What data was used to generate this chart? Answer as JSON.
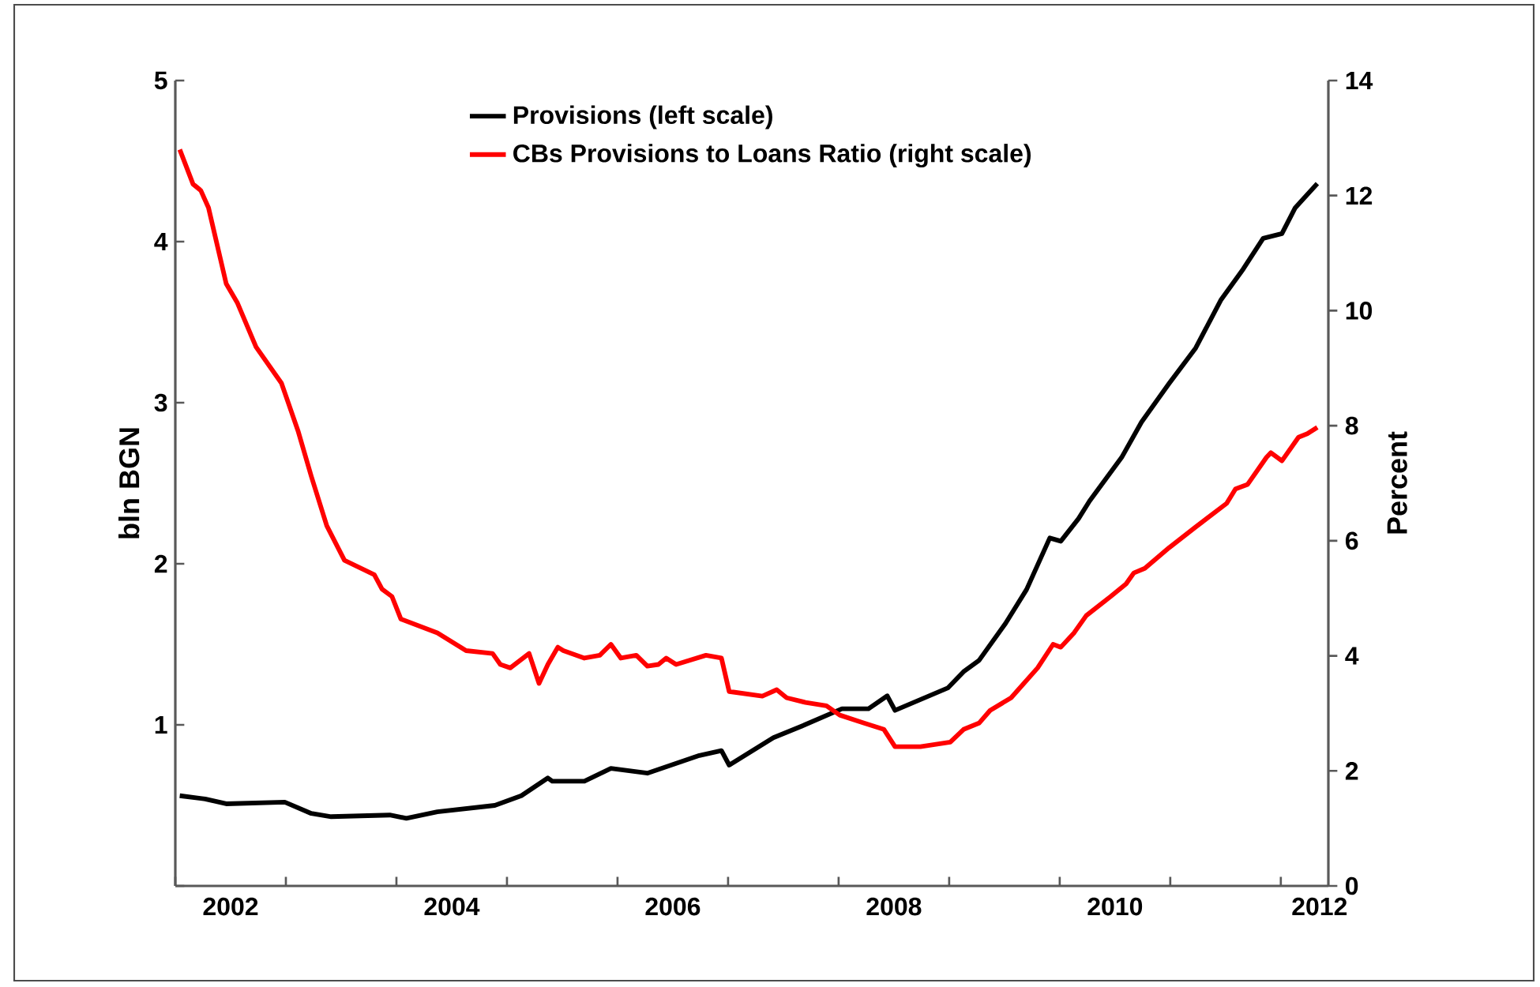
{
  "chart_data": {
    "type": "line",
    "ylabel": "bln BGN",
    "y2label": "Percent",
    "xlim": [
      2002.0,
      2012.43
    ],
    "ylim": [
      0,
      5
    ],
    "y2lim": [
      0,
      14
    ],
    "xticks": [
      {
        "value": 2002,
        "label": null
      },
      {
        "value": 2003,
        "label": null
      },
      {
        "value": 2004,
        "label": null
      },
      {
        "value": 2005,
        "label": null
      },
      {
        "value": 2006,
        "label": null
      },
      {
        "value": 2007,
        "label": null
      },
      {
        "value": 2008,
        "label": null
      },
      {
        "value": 2009,
        "label": null
      },
      {
        "value": 2010,
        "label": null
      },
      {
        "value": 2011,
        "label": null
      },
      {
        "value": 2012,
        "label": null
      },
      {
        "value": 2002.5,
        "label": "2002"
      },
      {
        "value": 2004.5,
        "label": "2004"
      },
      {
        "value": 2006.5,
        "label": "2006"
      },
      {
        "value": 2008.5,
        "label": "2008"
      },
      {
        "value": 2010.5,
        "label": "2010"
      },
      {
        "value": 2012.35,
        "label": "2012"
      }
    ],
    "yticks": [
      {
        "value": 0,
        "label": null
      },
      1,
      2,
      3,
      4,
      5
    ],
    "y2ticks": [
      0,
      2,
      4,
      6,
      8,
      10,
      12,
      14
    ],
    "legend": "top",
    "series": [
      {
        "name": "Provisions (left scale)",
        "color": "#000000",
        "x": [
          2002.04,
          2002.27,
          2002.46,
          2002.99,
          2003.23,
          2003.41,
          2003.94,
          2004.09,
          2004.37,
          2004.89,
          2005.13,
          2005.37,
          2005.41,
          2005.7,
          2005.94,
          2006.27,
          2006.74,
          2006.94,
          2007.01,
          2007.41,
          2007.66,
          2008.03,
          2008.27,
          2008.44,
          2008.51,
          2008.99,
          2009.13,
          2009.27,
          2009.51,
          2009.7,
          2009.91,
          2010.01,
          2010.17,
          2010.27,
          2010.56,
          2010.74,
          2010.99,
          2011.23,
          2011.46,
          2011.66,
          2011.84,
          2012.01,
          2012.13,
          2012.33
        ],
        "values": [
          0.56,
          0.54,
          0.51,
          0.52,
          0.45,
          0.43,
          0.44,
          0.42,
          0.46,
          0.5,
          0.56,
          0.67,
          0.65,
          0.65,
          0.73,
          0.7,
          0.81,
          0.84,
          0.75,
          0.92,
          0.99,
          1.1,
          1.1,
          1.18,
          1.09,
          1.23,
          1.33,
          1.4,
          1.63,
          1.84,
          2.16,
          2.14,
          2.28,
          2.39,
          2.66,
          2.88,
          3.12,
          3.34,
          3.64,
          3.83,
          4.02,
          4.05,
          4.21,
          4.36
        ]
      },
      {
        "name": "CBs Provisions to Loans Ratio (right scale)",
        "color": "#ff0000",
        "axis": "y2",
        "x": [
          2002.04,
          2002.16,
          2002.23,
          2002.3,
          2002.46,
          2002.56,
          2002.73,
          2002.96,
          2003.11,
          2003.23,
          2003.37,
          2003.53,
          2003.8,
          2003.87,
          2003.96,
          2004.04,
          2004.37,
          2004.63,
          2004.87,
          2004.94,
          2005.03,
          2005.2,
          2005.29,
          2005.37,
          2005.46,
          2005.51,
          2005.7,
          2005.84,
          2005.94,
          2006.03,
          2006.17,
          2006.27,
          2006.37,
          2006.44,
          2006.53,
          2006.8,
          2006.94,
          2007.01,
          2007.31,
          2007.44,
          2007.53,
          2007.7,
          2007.89,
          2008.01,
          2008.23,
          2008.41,
          2008.51,
          2008.74,
          2009.01,
          2009.13,
          2009.27,
          2009.37,
          2009.56,
          2009.8,
          2009.94,
          2010.01,
          2010.13,
          2010.24,
          2010.46,
          2010.6,
          2010.67,
          2010.77,
          2010.99,
          2011.23,
          2011.51,
          2011.59,
          2011.7,
          2011.87,
          2011.91,
          2012.01,
          2012.16,
          2012.24,
          2012.33
        ],
        "values": [
          12.8,
          12.2,
          12.09,
          11.79,
          10.47,
          10.14,
          9.37,
          8.74,
          7.91,
          7.12,
          6.26,
          5.66,
          5.41,
          5.16,
          5.03,
          4.64,
          4.4,
          4.09,
          4.04,
          3.85,
          3.79,
          4.04,
          3.52,
          3.85,
          4.15,
          4.09,
          3.96,
          4.01,
          4.2,
          3.96,
          4.01,
          3.82,
          3.85,
          3.96,
          3.85,
          4.01,
          3.96,
          3.38,
          3.3,
          3.41,
          3.27,
          3.19,
          3.13,
          2.97,
          2.83,
          2.72,
          2.42,
          2.42,
          2.5,
          2.72,
          2.83,
          3.05,
          3.27,
          3.79,
          4.2,
          4.15,
          4.4,
          4.7,
          5.03,
          5.25,
          5.44,
          5.52,
          5.88,
          6.24,
          6.65,
          6.9,
          6.98,
          7.45,
          7.53,
          7.39,
          7.8,
          7.86,
          7.97
        ]
      }
    ]
  }
}
